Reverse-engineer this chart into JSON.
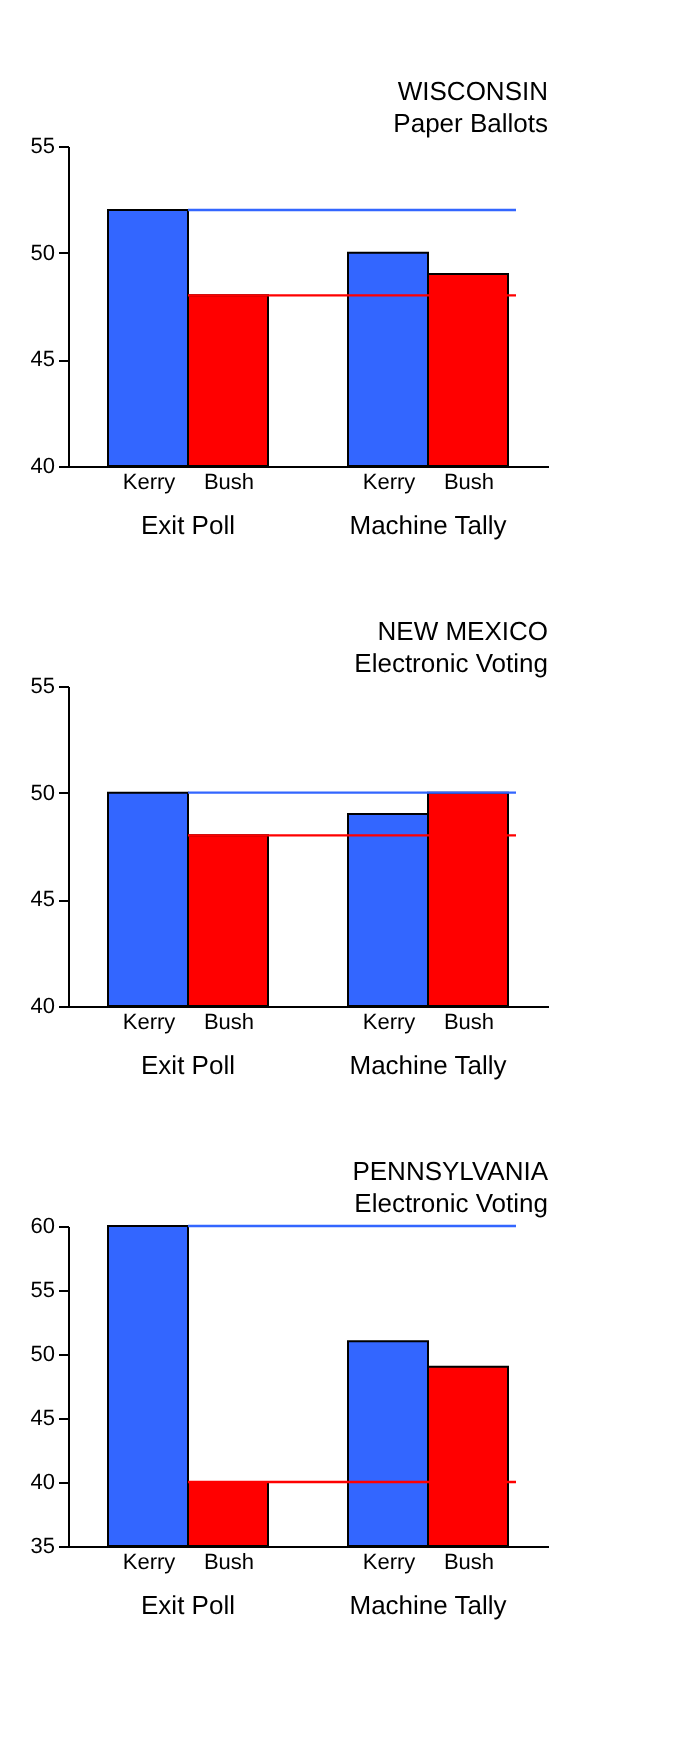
{
  "chart_data": [
    {
      "type": "bar",
      "title": "WISCONSIN",
      "subtitle": "Paper Ballots",
      "categories": [
        "Kerry",
        "Bush",
        "Kerry",
        "Bush"
      ],
      "values": [
        52,
        48,
        50,
        49
      ],
      "colors": [
        "#3366ff",
        "#ff0000",
        "#3366ff",
        "#ff0000"
      ],
      "ylim": [
        40,
        55
      ],
      "yticks": [
        40,
        45,
        50,
        55
      ],
      "grid": false,
      "annotations": [
        "Exit Poll",
        "Machine Tally"
      ],
      "ref_lines": [
        {
          "axis": "y",
          "value": 52,
          "color": "#3366ff"
        },
        {
          "axis": "y",
          "value": 48,
          "color": "#ff0000"
        }
      ]
    },
    {
      "type": "bar",
      "title": "NEW MEXICO",
      "subtitle": "Electronic Voting",
      "categories": [
        "Kerry",
        "Bush",
        "Kerry",
        "Bush"
      ],
      "values": [
        50,
        48,
        49,
        50
      ],
      "colors": [
        "#3366ff",
        "#ff0000",
        "#3366ff",
        "#ff0000"
      ],
      "ylim": [
        40,
        55
      ],
      "yticks": [
        40,
        45,
        50,
        55
      ],
      "grid": false,
      "annotations": [
        "Exit Poll",
        "Machine Tally"
      ],
      "ref_lines": [
        {
          "axis": "y",
          "value": 50,
          "color": "#3366ff"
        },
        {
          "axis": "y",
          "value": 48,
          "color": "#ff0000"
        }
      ]
    },
    {
      "type": "bar",
      "title": "PENNSYLVANIA",
      "subtitle": "Electronic Voting",
      "categories": [
        "Kerry",
        "Bush",
        "Kerry",
        "Bush"
      ],
      "values": [
        60,
        40,
        51,
        49
      ],
      "colors": [
        "#3366ff",
        "#ff0000",
        "#3366ff",
        "#ff0000"
      ],
      "ylim": [
        35,
        60
      ],
      "yticks": [
        35,
        40,
        45,
        50,
        55,
        60
      ],
      "grid": false,
      "annotations": [
        "Exit Poll",
        "Machine Tally"
      ],
      "ref_lines": [
        {
          "axis": "y",
          "value": 60,
          "color": "#3366ff"
        },
        {
          "axis": "y",
          "value": 40,
          "color": "#ff0000"
        }
      ]
    }
  ]
}
